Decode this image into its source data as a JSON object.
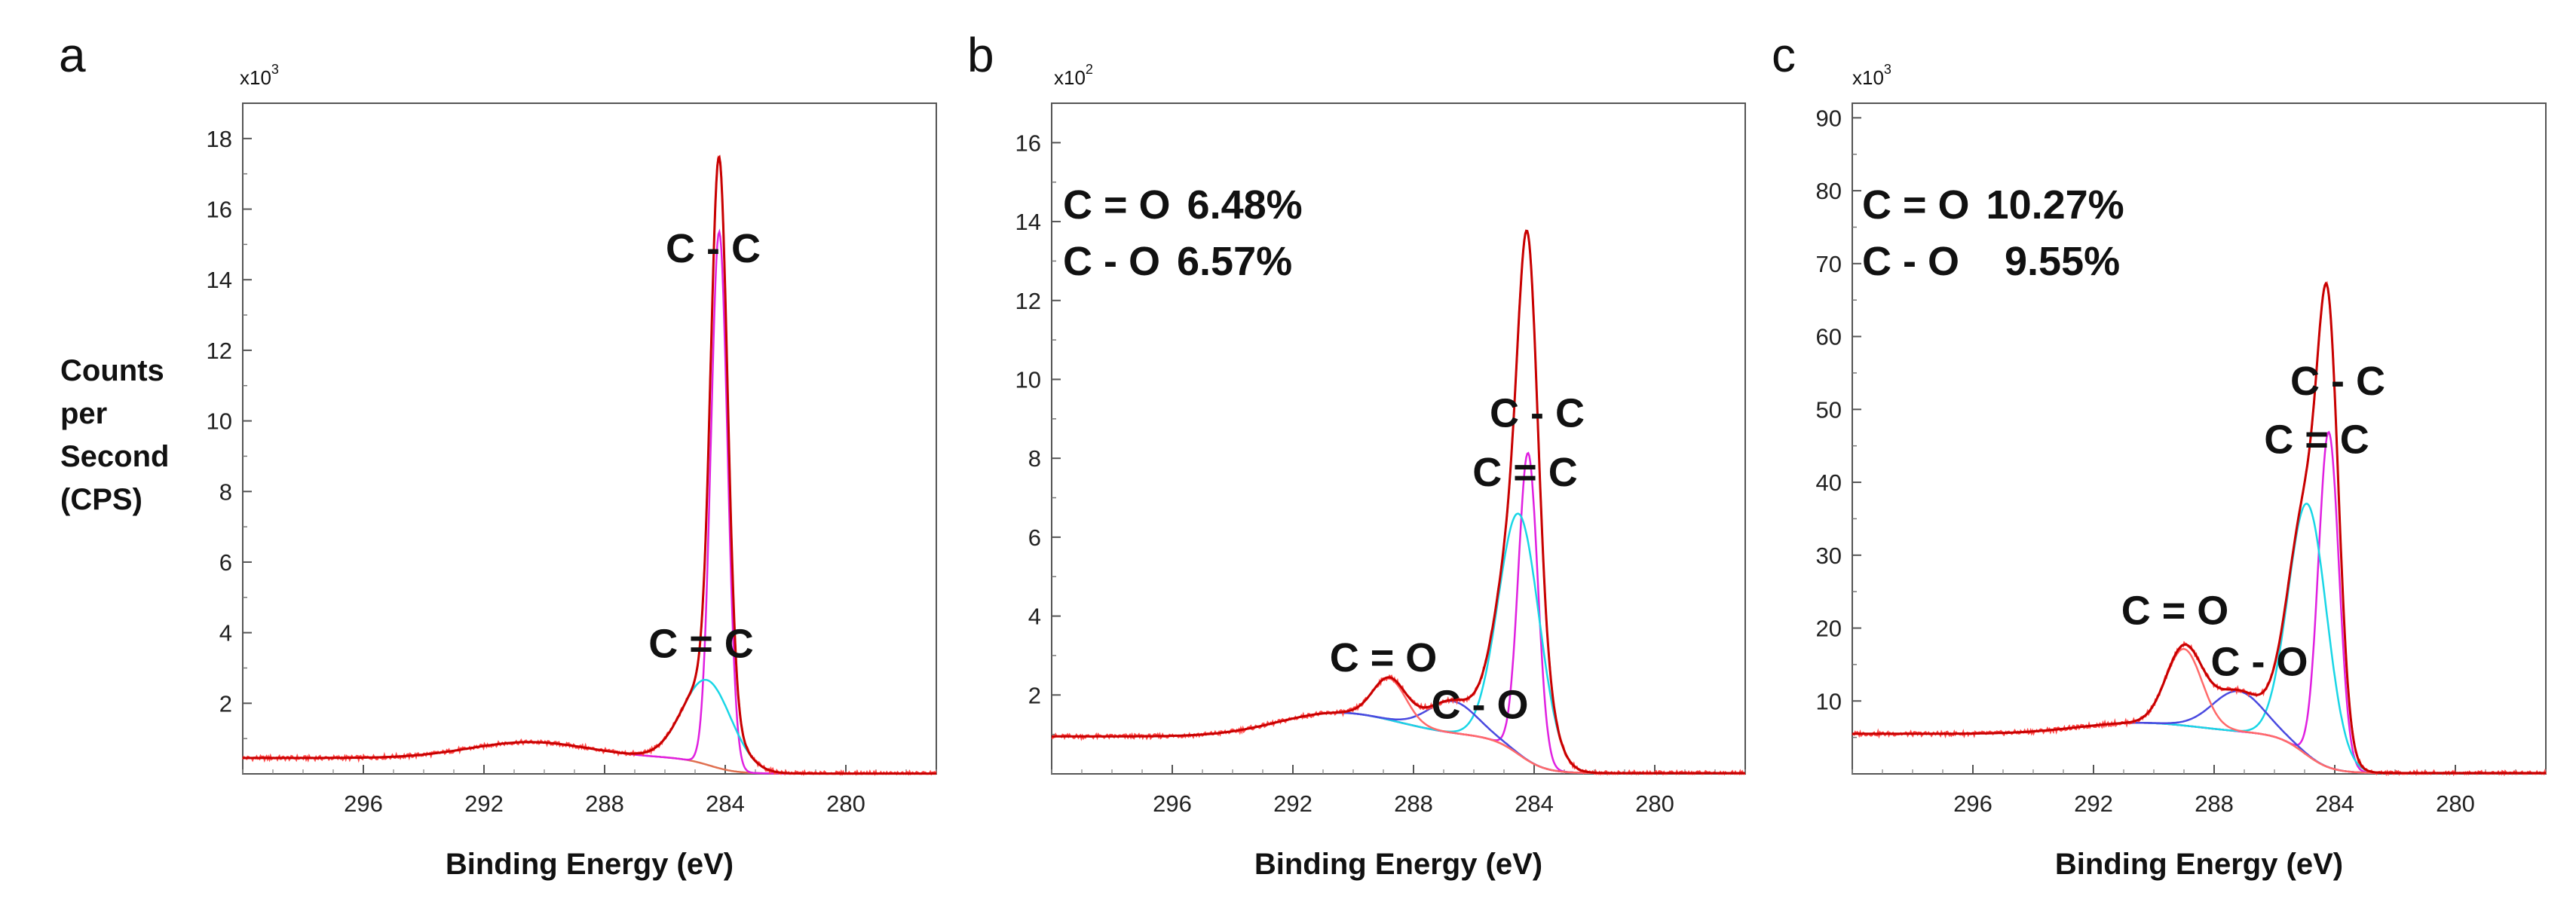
{
  "figure": {
    "y_axis_label_lines": [
      "Counts",
      "per",
      "Second",
      "(CPS)"
    ],
    "series_colors": {
      "raw": "#ff4b4b",
      "envelope": "#c80000",
      "cc": "#e020e0",
      "c_eq_c": "#19d6e6",
      "c_o": "#4a4ae0",
      "c_eq_o": "#ff6a6a",
      "background": "#e07050"
    }
  },
  "chart_data": [
    {
      "type": "line",
      "panel": "a",
      "exponent_base": "x10",
      "exponent_power": "3",
      "xlabel": "Binding Energy (eV)",
      "ylabel": "Counts per Second (CPS)",
      "xlim": [
        300,
        277
      ],
      "ylim": [
        0,
        19
      ],
      "xticks": [
        296,
        292,
        288,
        284,
        280
      ],
      "xtick_labels": [
        "296",
        "292",
        "288",
        "284",
        "280"
      ],
      "yticks": [
        2,
        4,
        6,
        8,
        10,
        12,
        14,
        16,
        18
      ],
      "ytick_labels": [
        "2",
        "4",
        "6",
        "8",
        "10",
        "12",
        "14",
        "16",
        "18"
      ],
      "baseline": {
        "left": 0.45,
        "step_height": 0.45,
        "step_center": 285.5
      },
      "components": [
        {
          "name": "C - C",
          "center": 284.2,
          "height": 15.2,
          "fwhm": 0.65,
          "color": "#e020e0"
        },
        {
          "name": "C = C",
          "center": 284.6,
          "height": 2.4,
          "fwhm": 1.9,
          "color": "#19d6e6"
        }
      ],
      "peak_labels": [
        {
          "text": "C - C",
          "x": 284.4,
          "y": 14.5
        },
        {
          "text": "C = C",
          "x": 284.8,
          "y": 3.3
        }
      ],
      "percent_labels": []
    },
    {
      "type": "line",
      "panel": "b",
      "exponent_base": "x10",
      "exponent_power": "2",
      "xlabel": "Binding Energy (eV)",
      "ylabel": "",
      "xlim": [
        300,
        277
      ],
      "ylim": [
        0,
        17
      ],
      "xticks": [
        296,
        292,
        288,
        284,
        280
      ],
      "xtick_labels": [
        "296",
        "292",
        "288",
        "284",
        "280"
      ],
      "yticks": [
        2,
        4,
        6,
        8,
        10,
        12,
        14,
        16
      ],
      "ytick_labels": [
        "2",
        "4",
        "6",
        "8",
        "10",
        "12",
        "14",
        "16"
      ],
      "baseline": {
        "left": 0.95,
        "step_height": 0.6,
        "step_center": 285.5
      },
      "components": [
        {
          "name": "C - C",
          "center": 284.2,
          "height": 7.8,
          "fwhm": 0.75,
          "color": "#e020e0"
        },
        {
          "name": "C = C",
          "center": 284.5,
          "height": 6.1,
          "fwhm": 1.6,
          "color": "#19d6e6"
        },
        {
          "name": "C - O",
          "center": 286.7,
          "height": 0.8,
          "fwhm": 1.9,
          "color": "#4a4ae0"
        },
        {
          "name": "C = O",
          "center": 288.8,
          "height": 1.05,
          "fwhm": 1.3,
          "color": "#ff6a6a"
        }
      ],
      "peak_labels": [
        {
          "text": "C - C",
          "x": 283.9,
          "y": 8.8
        },
        {
          "text": "C = C",
          "x": 284.3,
          "y": 7.3
        },
        {
          "text": "C = O",
          "x": 289.0,
          "y": 2.6
        },
        {
          "text": "C - O",
          "x": 285.8,
          "y": 1.4
        }
      ],
      "percent_labels": [
        {
          "name": "C = O",
          "value": "6.48%"
        },
        {
          "name": "C - O",
          "value": "6.57%"
        }
      ]
    },
    {
      "type": "line",
      "panel": "c",
      "exponent_base": "x10",
      "exponent_power": "3",
      "xlabel": "Binding Energy (eV)",
      "ylabel": "",
      "xlim": [
        300,
        277
      ],
      "ylim": [
        0,
        92
      ],
      "xticks": [
        296,
        292,
        288,
        284,
        280
      ],
      "xtick_labels": [
        "296",
        "292",
        "288",
        "284",
        "280"
      ],
      "yticks": [
        10,
        20,
        30,
        40,
        50,
        60,
        70,
        80,
        90
      ],
      "ytick_labels": [
        "10",
        "20",
        "30",
        "40",
        "50",
        "60",
        "70",
        "80",
        "90"
      ],
      "baseline": {
        "left": 5.5,
        "step_height": 1.5,
        "step_center": 286.0
      },
      "components": [
        {
          "name": "C - C",
          "center": 284.2,
          "height": 46.0,
          "fwhm": 0.8,
          "color": "#e020e0"
        },
        {
          "name": "C = C",
          "center": 284.9,
          "height": 34.5,
          "fwhm": 1.5,
          "color": "#19d6e6"
        },
        {
          "name": "C - O",
          "center": 287.2,
          "height": 5.5,
          "fwhm": 2.0,
          "color": "#4a4ae0"
        },
        {
          "name": "C = O",
          "center": 289.0,
          "height": 10.5,
          "fwhm": 1.4,
          "color": "#ff6a6a"
        }
      ],
      "peak_labels": [
        {
          "text": "C - C",
          "x": 283.9,
          "y": 52.0
        },
        {
          "text": "C = C",
          "x": 284.6,
          "y": 44.0
        },
        {
          "text": "C = O",
          "x": 289.3,
          "y": 20.5
        },
        {
          "text": "C - O",
          "x": 286.5,
          "y": 13.5
        }
      ],
      "percent_labels": [
        {
          "name": "C = O",
          "value": "10.27%"
        },
        {
          "name": "C - O",
          "value": "9.55%"
        }
      ]
    }
  ]
}
